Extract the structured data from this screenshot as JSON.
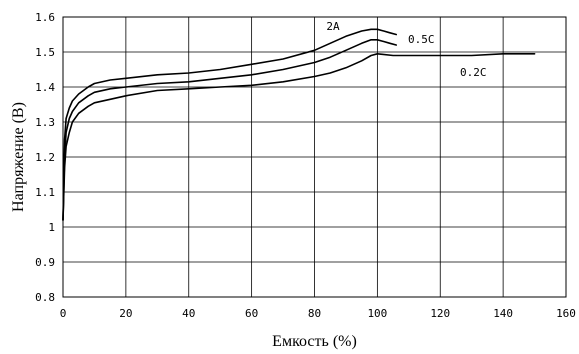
{
  "chart_data": {
    "type": "line",
    "title": "",
    "xlabel": "Емкость  (%)",
    "ylabel": "Напряжение (В)",
    "xlim": [
      0,
      160
    ],
    "ylim": [
      0.8,
      1.6
    ],
    "x_ticks": [
      0,
      20,
      40,
      60,
      80,
      100,
      120,
      140,
      160
    ],
    "y_ticks": [
      0.8,
      0.9,
      1,
      1.1,
      1.2,
      1.3,
      1.4,
      1.5,
      1.6
    ],
    "x_tick_labels": [
      "0",
      "20",
      "40",
      "60",
      "80",
      "100",
      "120",
      "140",
      "160"
    ],
    "y_tick_labels": [
      "0.8",
      "0.9",
      "1",
      "1.1",
      "1.2",
      "1.3",
      "1.4",
      "1.5",
      "1.6"
    ],
    "grid": true,
    "legend": "inline-labels",
    "series": [
      {
        "name": "2A",
        "color": "#000000",
        "x": [
          0,
          0.5,
          1,
          2,
          3,
          5,
          8,
          10,
          15,
          20,
          30,
          40,
          50,
          60,
          70,
          80,
          85,
          90,
          95,
          98,
          100,
          102,
          104,
          106
        ],
        "y": [
          1.02,
          1.25,
          1.31,
          1.34,
          1.36,
          1.38,
          1.4,
          1.41,
          1.42,
          1.425,
          1.435,
          1.44,
          1.45,
          1.465,
          1.48,
          1.505,
          1.525,
          1.545,
          1.56,
          1.565,
          1.565,
          1.56,
          1.555,
          1.55
        ]
      },
      {
        "name": "0.5C",
        "color": "#000000",
        "x": [
          0,
          0.5,
          1,
          2,
          3,
          5,
          8,
          10,
          15,
          20,
          30,
          40,
          50,
          60,
          70,
          80,
          85,
          90,
          95,
          98,
          100,
          102,
          104,
          106
        ],
        "y": [
          1.02,
          1.2,
          1.27,
          1.31,
          1.33,
          1.355,
          1.375,
          1.385,
          1.395,
          1.4,
          1.41,
          1.415,
          1.425,
          1.435,
          1.45,
          1.47,
          1.485,
          1.505,
          1.525,
          1.535,
          1.535,
          1.53,
          1.525,
          1.52
        ]
      },
      {
        "name": "0.2C",
        "color": "#000000",
        "x": [
          0,
          0.5,
          1,
          2,
          3,
          5,
          8,
          10,
          15,
          20,
          30,
          40,
          50,
          60,
          70,
          80,
          85,
          90,
          95,
          98,
          100,
          105,
          110,
          120,
          130,
          140,
          150
        ],
        "y": [
          1.02,
          1.17,
          1.23,
          1.27,
          1.3,
          1.325,
          1.345,
          1.355,
          1.365,
          1.375,
          1.39,
          1.395,
          1.4,
          1.405,
          1.415,
          1.43,
          1.44,
          1.455,
          1.475,
          1.49,
          1.495,
          1.49,
          1.49,
          1.49,
          1.49,
          1.495,
          1.495
        ]
      }
    ]
  }
}
